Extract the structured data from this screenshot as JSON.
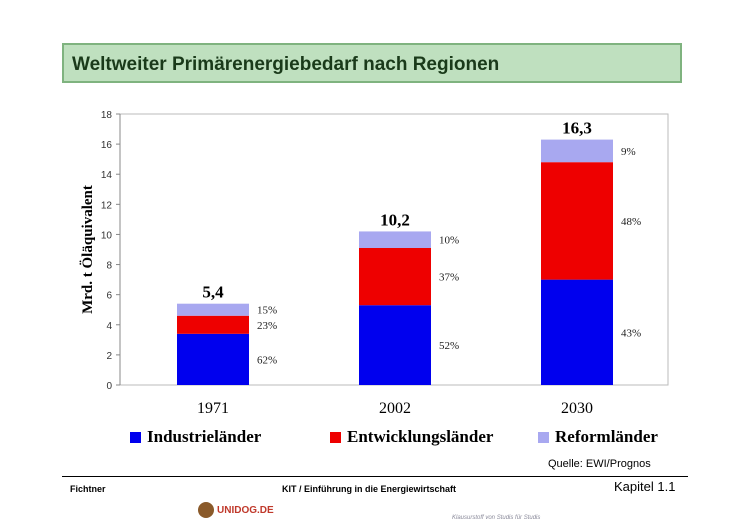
{
  "title": "Weltweiter Primärenergiebedarf nach Regionen",
  "colors": {
    "industrie": "#0000ee",
    "entwicklung": "#ee0000",
    "reform": "#a8a8f0",
    "title_bg": "#bfe0bf"
  },
  "chart_data": {
    "type": "bar",
    "stacked": true,
    "categories": [
      "1971",
      "2002",
      "2030"
    ],
    "ylabel": "Mrd. t Öläquivalent",
    "ylim": [
      0,
      18
    ],
    "yticks": [
      0,
      2,
      4,
      6,
      8,
      10,
      12,
      14,
      16,
      18
    ],
    "totals": [
      5.4,
      10.2,
      16.3
    ],
    "total_labels": [
      "5,4",
      "10,2",
      "16,3"
    ],
    "series": [
      {
        "name": "Industrieländer",
        "color": "#0000ee",
        "values": [
          3.4,
          5.3,
          7.0
        ],
        "labels": [
          "62%",
          "52%",
          "43%"
        ]
      },
      {
        "name": "Entwicklungsländer",
        "color": "#ee0000",
        "values": [
          1.2,
          3.8,
          7.8
        ],
        "labels": [
          "23%",
          "37%",
          "48%"
        ]
      },
      {
        "name": "Reformländer",
        "color": "#a8a8f0",
        "values": [
          0.8,
          1.1,
          1.5
        ],
        "labels": [
          "15%",
          "10%",
          "9%"
        ]
      }
    ],
    "legend": "bottom"
  },
  "source": "Quelle: EWI/Prognos",
  "footer": {
    "author": "Fichtner",
    "course": "KIT   /   Einführung in die Energiewirtschaft",
    "chapter": "Kapitel 1.1",
    "logo_text": "UNIDOG.DE",
    "watermark": "Klausurstoff von Studis für Studis"
  }
}
